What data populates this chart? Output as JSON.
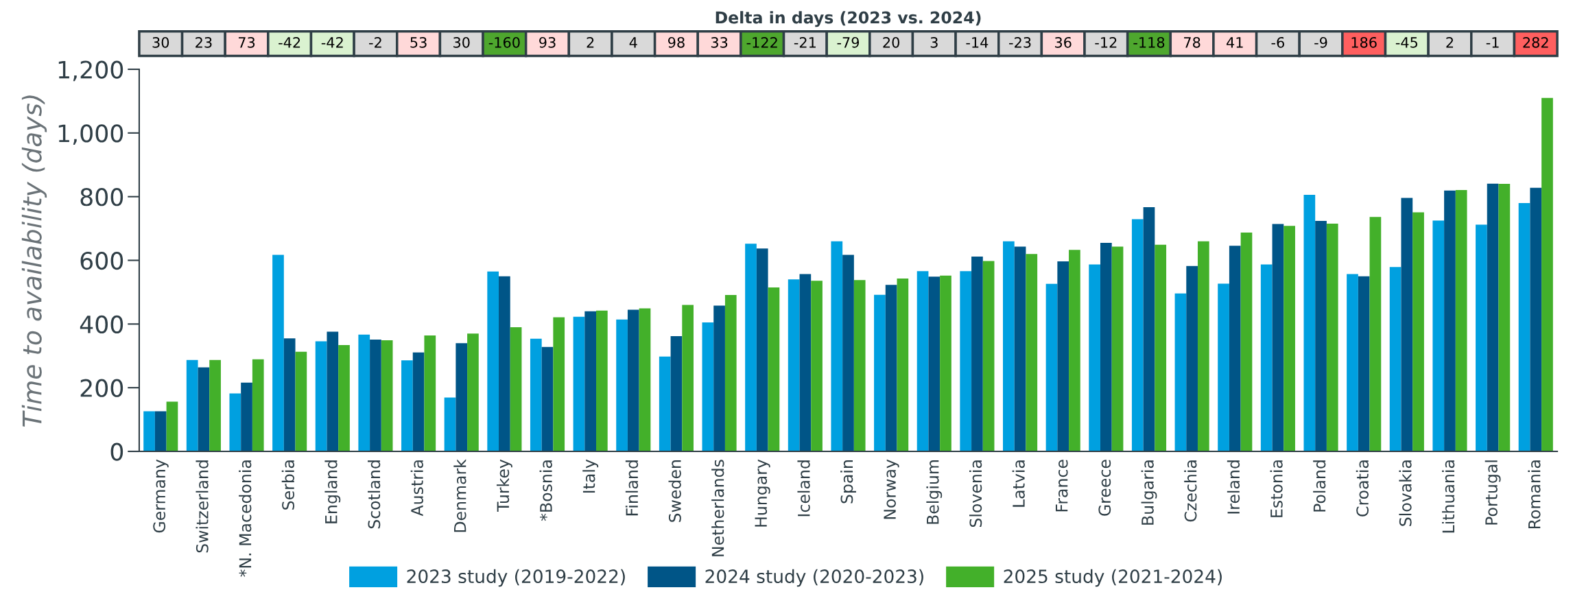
{
  "chart_data": {
    "type": "bar",
    "title": "Delta in days (2023 vs. 2024)",
    "ylabel": "Time to availability (days)",
    "categories": [
      "Germany",
      "Switzerland",
      "*N. Macedonia",
      "Serbia",
      "England",
      "Scotland",
      "Austria",
      "Denmark",
      "Turkey",
      "*Bosnia",
      "Italy",
      "Finland",
      "Sweden",
      "Netherlands",
      "Hungary",
      "Iceland",
      "Spain",
      "Norway",
      "Belgium",
      "Slovenia",
      "Latvia",
      "France",
      "Greece",
      "Bulgaria",
      "Czechia",
      "Ireland",
      "Estonia",
      "Poland",
      "Croatia",
      "Slovakia",
      "Lithuania",
      "Portugal",
      "Romania"
    ],
    "series": [
      {
        "name": "2023 study (2019-2022)",
        "color": "#00a0e0",
        "values": [
          126,
          287,
          182,
          617,
          346,
          367,
          286,
          169,
          565,
          354,
          423,
          414,
          298,
          405,
          652,
          540,
          660,
          492,
          566,
          566,
          660,
          526,
          587,
          729,
          496,
          527,
          587,
          806,
          557,
          579,
          725,
          712,
          780
        ]
      },
      {
        "name": "2024 study (2020-2023)",
        "color": "#005587",
        "values": [
          126,
          264,
          216,
          355,
          376,
          351,
          311,
          340,
          550,
          328,
          440,
          445,
          362,
          458,
          637,
          557,
          617,
          523,
          549,
          612,
          643,
          597,
          655,
          767,
          582,
          646,
          714,
          724,
          550,
          796,
          819,
          841,
          828
        ]
      },
      {
        "name": "2025 study (2021-2024)",
        "color": "#43b02a",
        "values": [
          156,
          287,
          289,
          313,
          334,
          349,
          364,
          370,
          390,
          421,
          442,
          449,
          460,
          491,
          515,
          536,
          538,
          543,
          552,
          598,
          620,
          633,
          643,
          649,
          660,
          687,
          708,
          715,
          736,
          751,
          821,
          840,
          1110
        ]
      }
    ],
    "annotations": [
      "30",
      "23",
      "73",
      "-42",
      "-42",
      "-2",
      "53",
      "30",
      "-160",
      "93",
      "2",
      "4",
      "98",
      "33",
      "-122",
      "-21",
      "-79",
      "20",
      "3",
      "-14",
      "-23",
      "36",
      "-12",
      "-118",
      "78",
      "41",
      "-6",
      "-9",
      "186",
      "-45",
      "2",
      "-1",
      "282"
    ],
    "ylim": [
      0,
      1200
    ],
    "yticks": [
      0,
      200,
      400,
      600,
      800,
      {
        "value": 1000,
        "label": "1,000"
      },
      {
        "value": 1200,
        "label": "1,200"
      }
    ],
    "legend": "bottom",
    "grid": false
  }
}
